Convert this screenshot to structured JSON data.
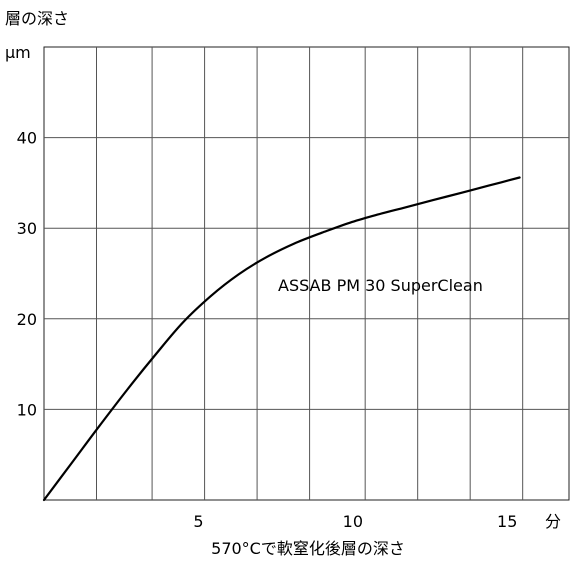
{
  "chart_data": {
    "type": "line",
    "title": "",
    "ylabel": "層の深さ",
    "yunit": "μm",
    "xlabel": "570°Cで軟窒化後層の深さ",
    "xunit": "分",
    "xlim": [
      0,
      17
    ],
    "ylim": [
      0,
      50
    ],
    "xticks": [
      5,
      10,
      15
    ],
    "yticks": [
      10,
      20,
      30,
      40
    ],
    "xgrid": [
      1.7,
      3.5,
      5.2,
      6.9,
      8.6,
      10.4,
      12.1,
      13.8,
      15.5
    ],
    "ygrid": [
      10,
      20,
      30,
      40
    ],
    "grid": true,
    "series": [
      {
        "name": "ASSAB PM 30 SuperClean",
        "color": "#000000",
        "x": [
          0,
          0.9,
          1.8,
          2.7,
          3.6,
          4.5,
          5.4,
          6.3,
          7.2,
          8.1,
          9.0,
          9.9,
          10.8,
          11.7,
          12.6,
          13.5,
          14.4,
          15.4
        ],
        "y": [
          0,
          4.1,
          8.2,
          12.2,
          16.0,
          19.6,
          22.5,
          24.9,
          26.8,
          28.3,
          29.5,
          30.6,
          31.5,
          32.3,
          33.1,
          33.9,
          34.7,
          35.6
        ]
      }
    ]
  }
}
